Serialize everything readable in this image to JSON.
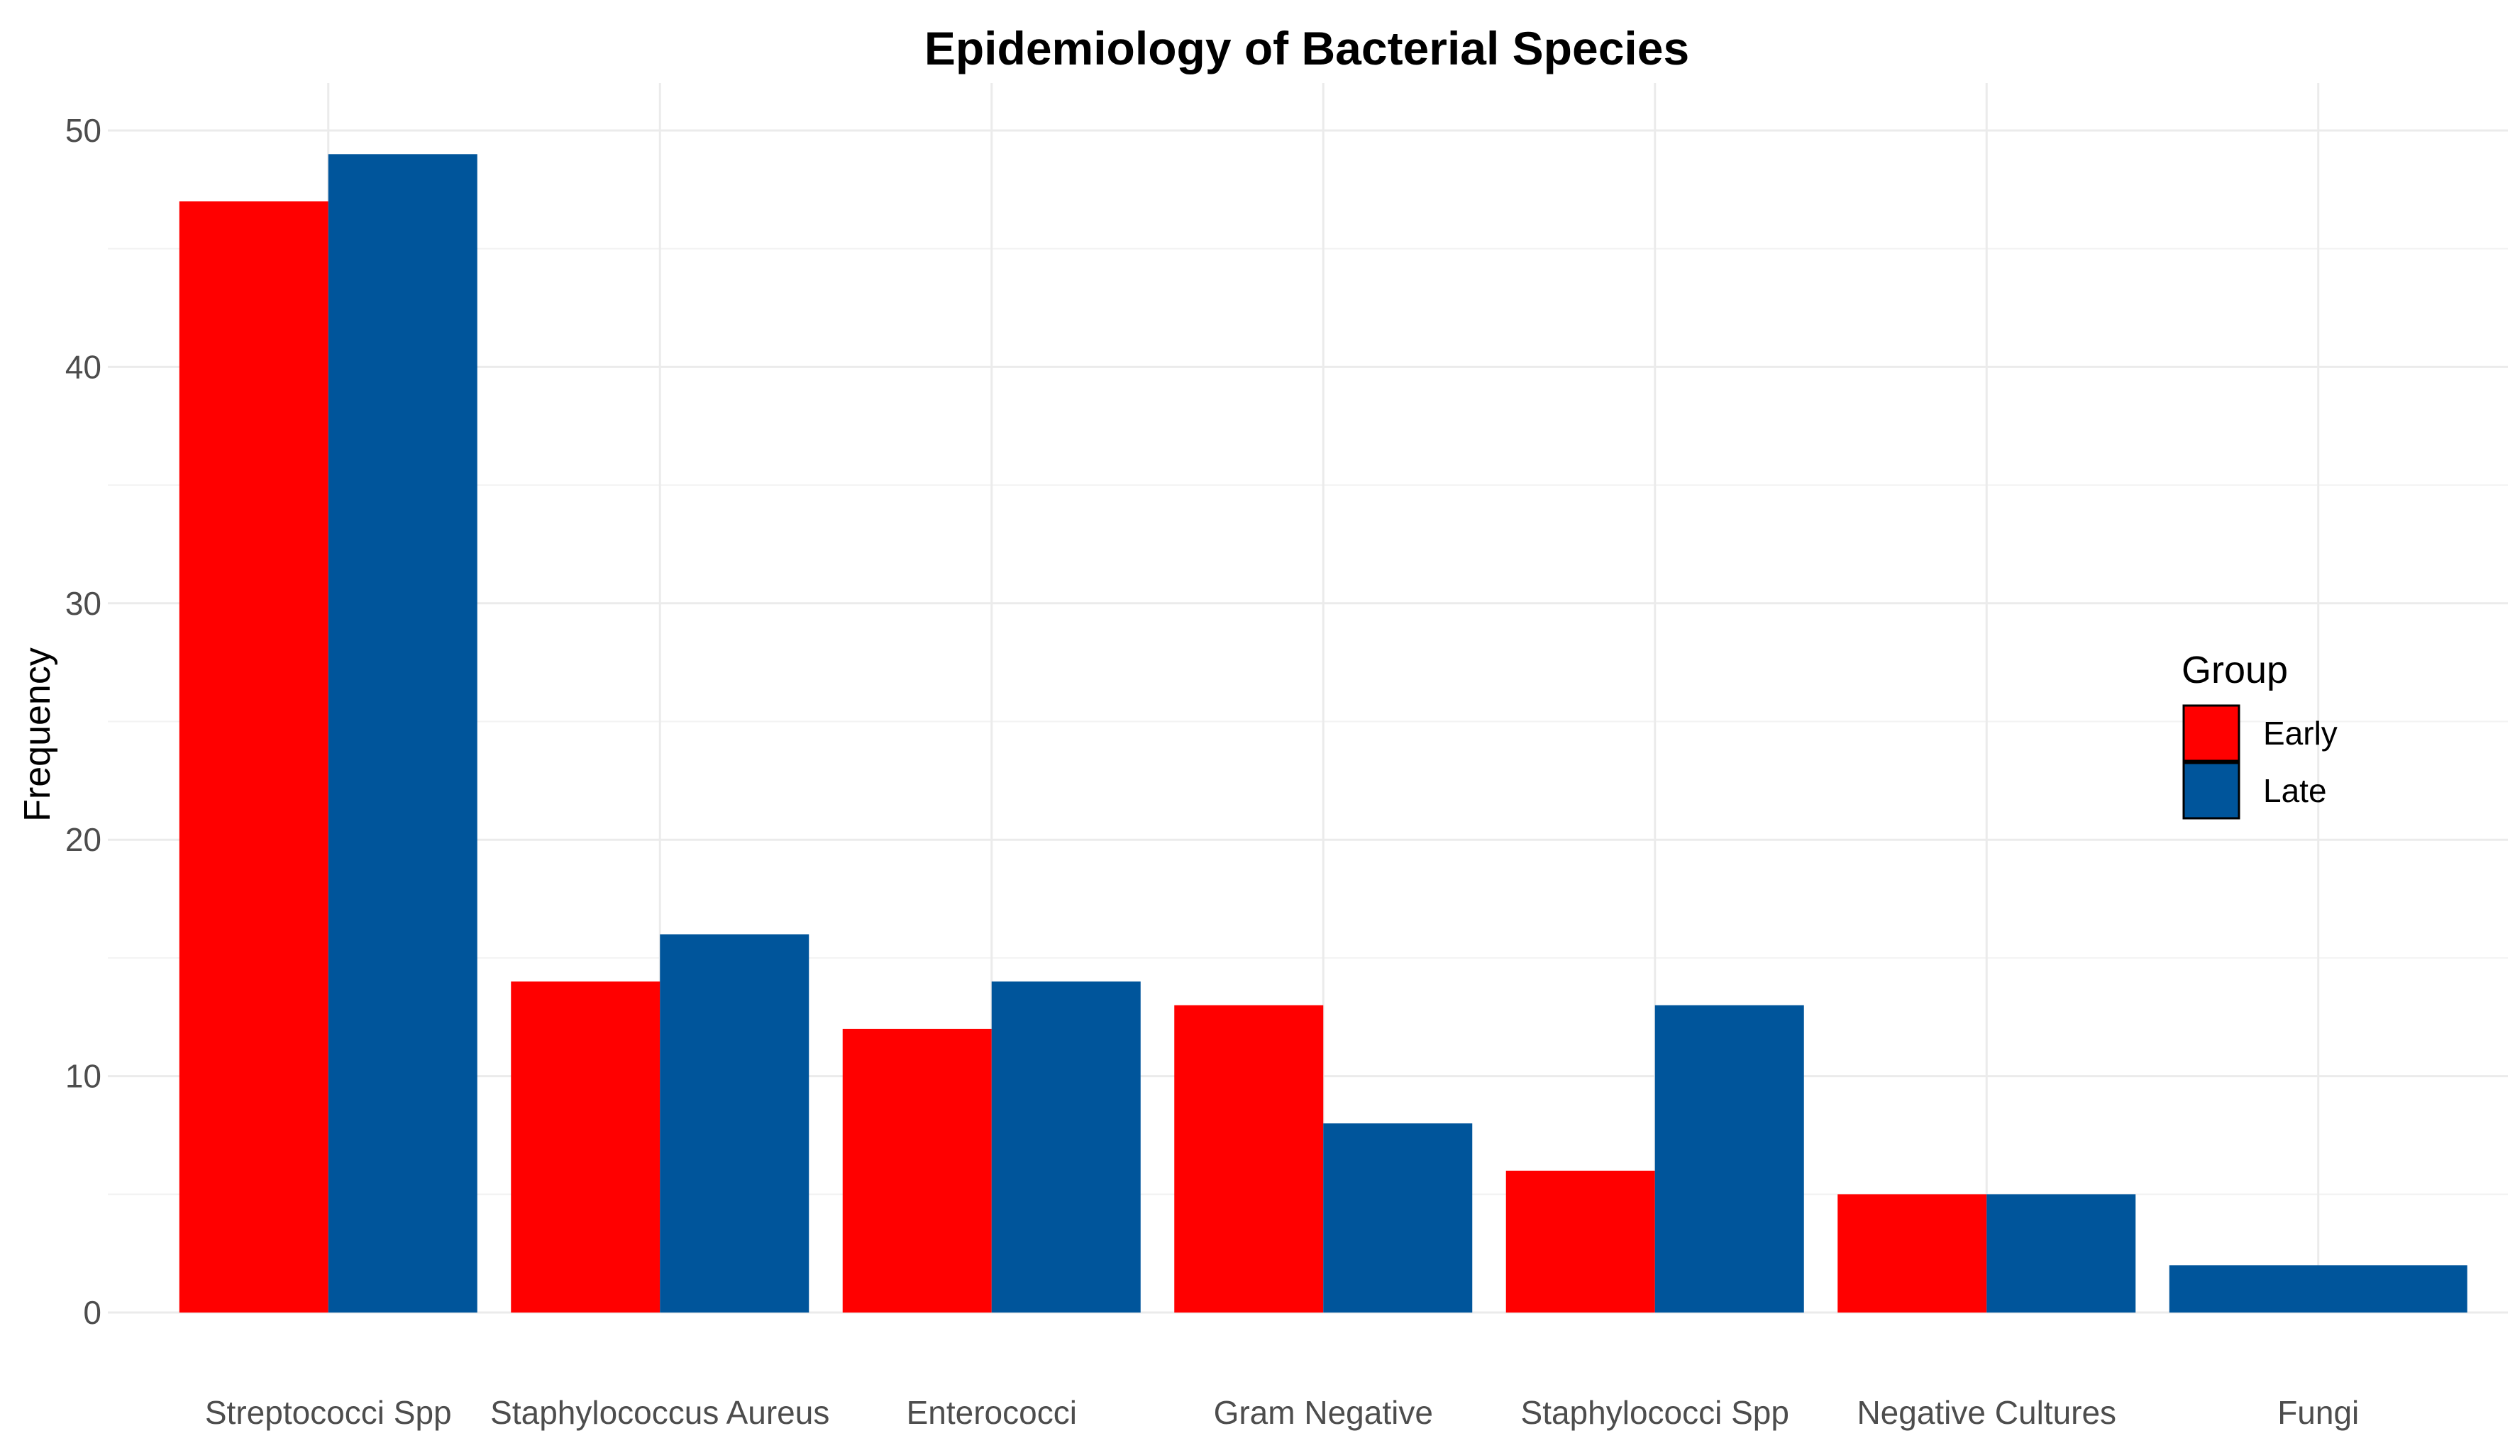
{
  "chart_data": {
    "type": "bar",
    "title": "Epidemiology of Bacterial Species",
    "xlabel": "",
    "ylabel": "Frequency",
    "categories": [
      "Streptococci Spp",
      "Staphylococcus Aureus",
      "Enterococci",
      "Gram Negative",
      "Staphylococci Spp",
      "Negative Cultures",
      "Fungi"
    ],
    "series": [
      {
        "name": "Early",
        "color": "#ff0000",
        "values": [
          47,
          14,
          12,
          13,
          6,
          5,
          0
        ]
      },
      {
        "name": "Late",
        "color": "#00559b",
        "values": [
          49,
          16,
          14,
          8,
          13,
          5,
          2
        ]
      }
    ],
    "ylim": [
      0,
      50
    ],
    "yticks": [
      0,
      10,
      20,
      30,
      40,
      50
    ],
    "grid": true,
    "legend": {
      "title": "Group",
      "position": "right"
    }
  }
}
